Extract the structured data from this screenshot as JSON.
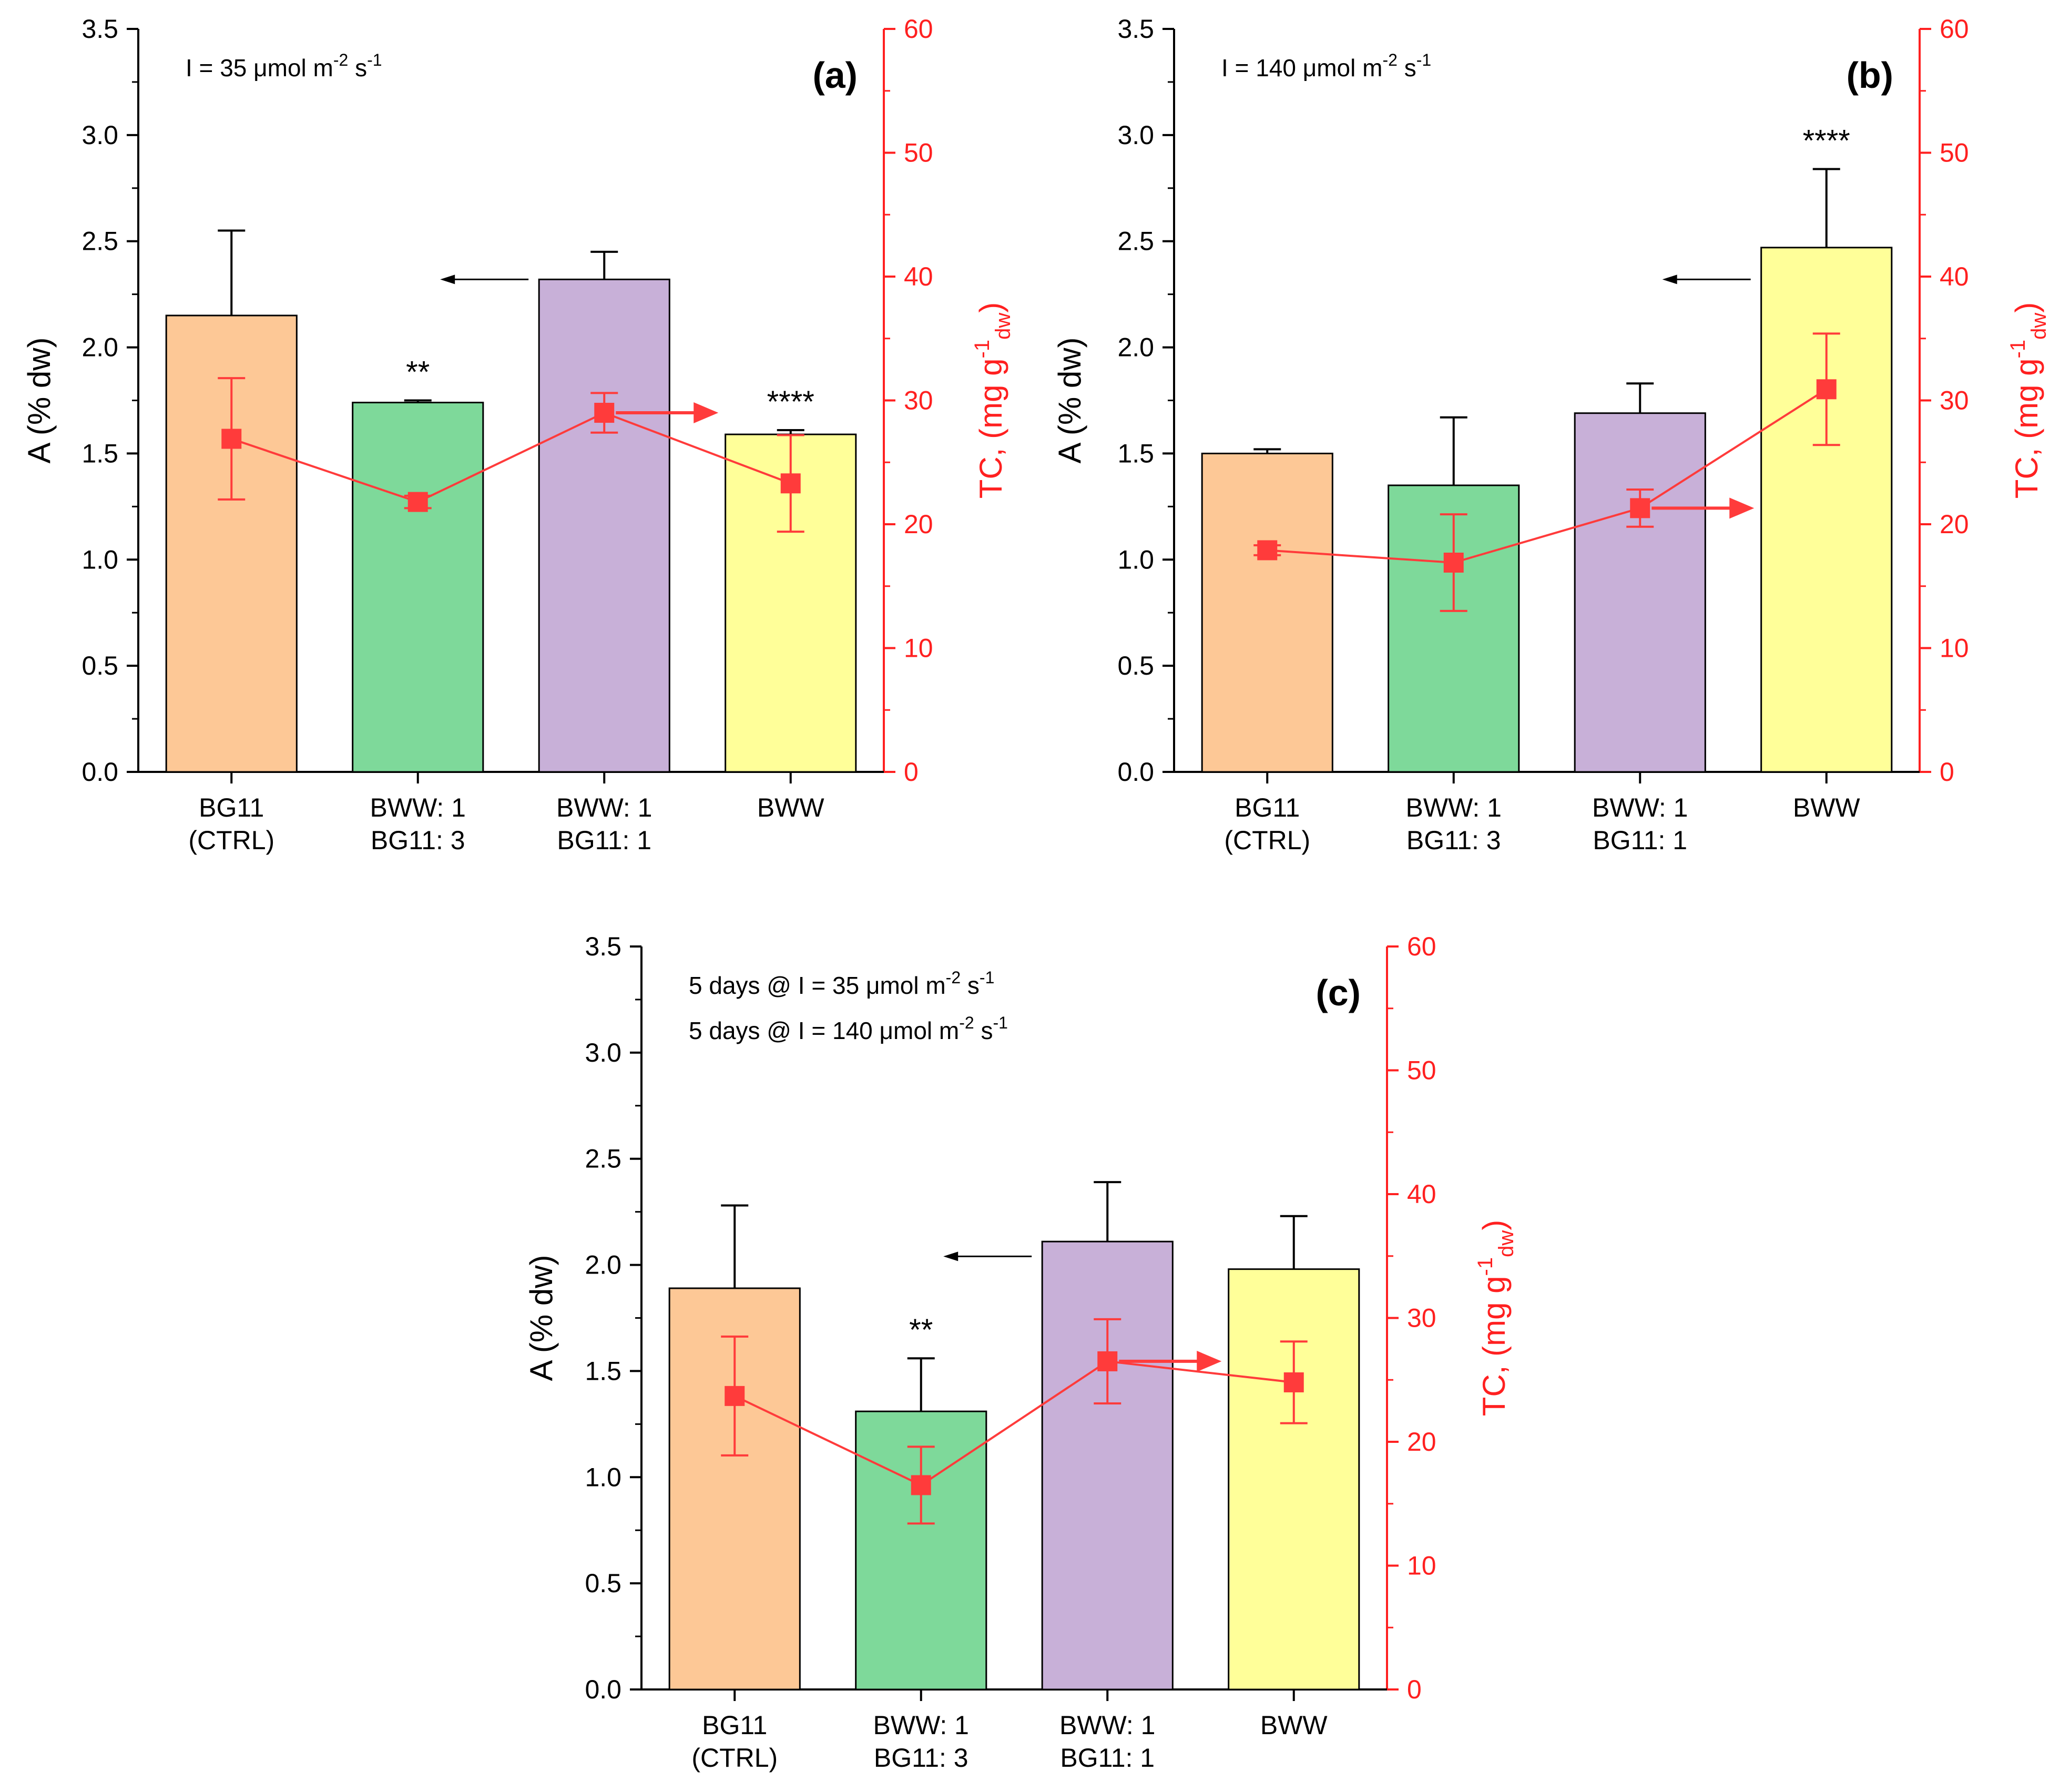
{
  "colors": {
    "bar_fills": [
      "#fdc896",
      "#7ed99a",
      "#c8b0d8",
      "#ffff99"
    ],
    "line": "#ff3b3b",
    "tc_axis": "#ff2020",
    "bar_outline": "#000000"
  },
  "axis_labels": {
    "left_label": "A (% dw)",
    "right_prefix": "TC, (mg g",
    "right_sup": "-1",
    "right_sub": "dw",
    "right_suffix": ")"
  },
  "units": {
    "umol": "μmol m",
    "m_exp": "-2",
    "s_text": " s",
    "s_exp": "-1"
  },
  "chart_data": [
    {
      "type": "bar",
      "panel": "(a)",
      "note_lines": [
        {
          "prefix": "I = 35 "
        }
      ],
      "categories": [
        [
          "BG11",
          "(CTRL)"
        ],
        [
          "BWW: 1",
          "BG11: 3"
        ],
        [
          "BWW: 1",
          "BG11: 1"
        ],
        [
          "BWW",
          ""
        ]
      ],
      "series": [
        {
          "name": "A (% dw)",
          "axis": "left",
          "kind": "bar",
          "values": [
            2.15,
            1.74,
            2.32,
            1.59
          ],
          "errors": [
            0.4,
            0.01,
            0.13,
            0.02
          ]
        },
        {
          "name": "TC (mg g-1 dw)",
          "axis": "right",
          "kind": "line",
          "values": [
            26.9,
            21.8,
            29.0,
            23.3
          ],
          "errors": [
            4.9,
            0.5,
            1.6,
            3.9
          ]
        }
      ],
      "significance": [
        "",
        "**",
        "",
        "****"
      ],
      "left_ylim": [
        0,
        3.5
      ],
      "left_ticks": [
        "0.0",
        "0.5",
        "1.0",
        "1.5",
        "2.0",
        "2.5",
        "3.0",
        "3.5"
      ],
      "right_ylim": [
        0,
        60
      ],
      "right_ticks": [
        "0",
        "10",
        "20",
        "30",
        "40",
        "50",
        "60"
      ],
      "arrow_left_value": 2.32,
      "arrow_left_category": 2,
      "arrow_right_value": 29.0,
      "arrow_right_category": 2
    },
    {
      "type": "bar",
      "panel": "(b)",
      "note_lines": [
        {
          "prefix": "I = 140 "
        }
      ],
      "categories": [
        [
          "BG11",
          "(CTRL)"
        ],
        [
          "BWW: 1",
          "BG11: 3"
        ],
        [
          "BWW: 1",
          "BG11: 1"
        ],
        [
          "BWW",
          ""
        ]
      ],
      "series": [
        {
          "name": "A (% dw)",
          "axis": "left",
          "kind": "bar",
          "values": [
            1.5,
            1.35,
            1.69,
            2.47
          ],
          "errors": [
            0.02,
            0.32,
            0.14,
            0.37
          ]
        },
        {
          "name": "TC (mg g-1 dw)",
          "axis": "right",
          "kind": "line",
          "values": [
            17.9,
            16.9,
            21.3,
            30.9
          ],
          "errors": [
            0.4,
            3.9,
            1.5,
            4.5
          ]
        }
      ],
      "significance": [
        "",
        "",
        "",
        "****"
      ],
      "left_ylim": [
        0,
        3.5
      ],
      "left_ticks": [
        "0.0",
        "0.5",
        "1.0",
        "1.5",
        "2.0",
        "2.5",
        "3.0",
        "3.5"
      ],
      "right_ylim": [
        0,
        60
      ],
      "right_ticks": [
        "0",
        "10",
        "20",
        "30",
        "40",
        "50",
        "60"
      ],
      "arrow_left_value": 2.32,
      "arrow_left_category": 3,
      "arrow_right_value": 21.3,
      "arrow_right_category": 2
    },
    {
      "type": "bar",
      "panel": "(c)",
      "note_lines": [
        {
          "prefix": "5 days @ I = 35 "
        },
        {
          "prefix": "5 days @ I = 140 "
        }
      ],
      "categories": [
        [
          "BG11",
          "(CTRL)"
        ],
        [
          "BWW: 1",
          "BG11: 3"
        ],
        [
          "BWW: 1",
          "BG11: 1"
        ],
        [
          "BWW",
          ""
        ]
      ],
      "series": [
        {
          "name": "A (% dw)",
          "axis": "left",
          "kind": "bar",
          "values": [
            1.89,
            1.31,
            2.11,
            1.98
          ],
          "errors": [
            0.39,
            0.25,
            0.28,
            0.25
          ]
        },
        {
          "name": "TC (mg g-1 dw)",
          "axis": "right",
          "kind": "line",
          "values": [
            23.7,
            16.5,
            26.5,
            24.8
          ],
          "errors": [
            4.8,
            3.1,
            3.4,
            3.3
          ]
        }
      ],
      "significance": [
        "",
        "**",
        "",
        ""
      ],
      "left_ylim": [
        0,
        3.5
      ],
      "left_ticks": [
        "0.0",
        "0.5",
        "1.0",
        "1.5",
        "2.0",
        "2.5",
        "3.0",
        "3.5"
      ],
      "right_ylim": [
        0,
        60
      ],
      "right_ticks": [
        "0",
        "10",
        "20",
        "30",
        "40",
        "50",
        "60"
      ],
      "arrow_left_value": 2.04,
      "arrow_left_category": 2,
      "arrow_right_value": 26.5,
      "arrow_right_category": 2
    }
  ]
}
